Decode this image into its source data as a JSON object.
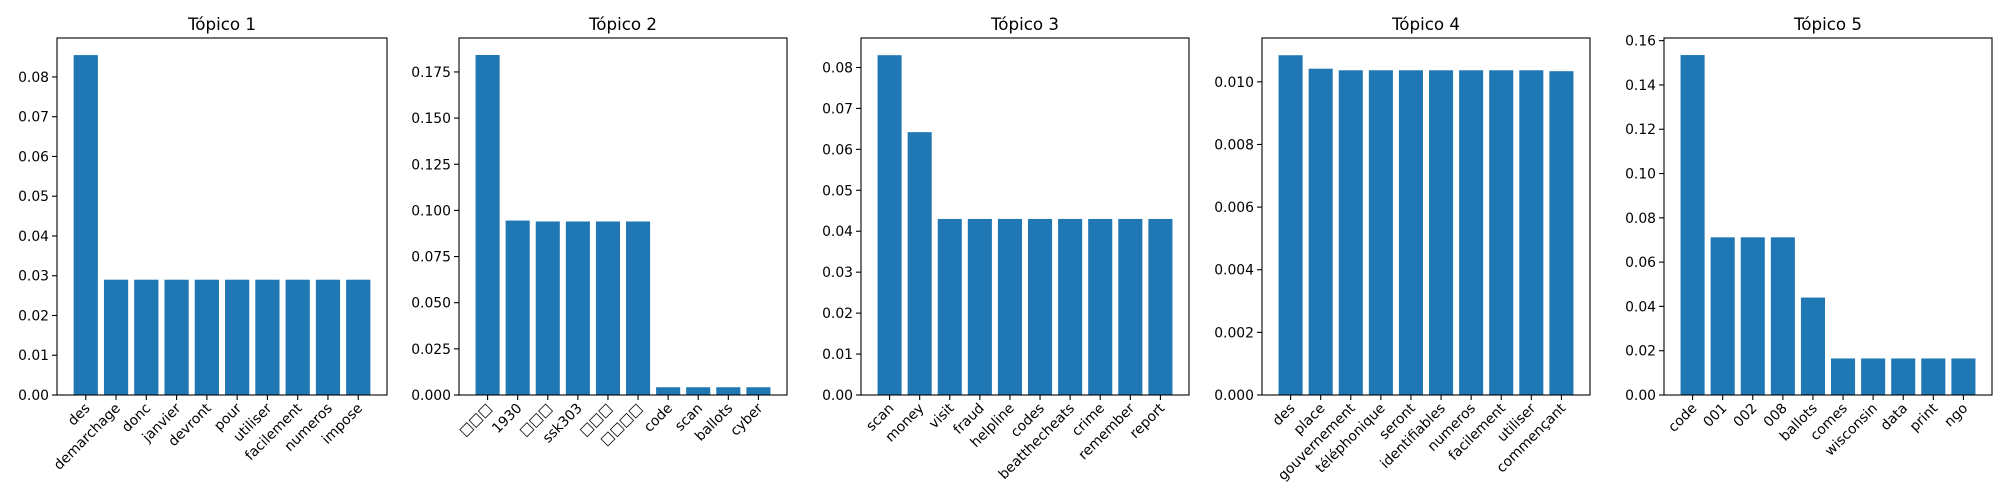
{
  "chart_data": [
    {
      "type": "bar",
      "title": "Tópico 1",
      "categories": [
        "des",
        "demarchage",
        "donc",
        "janvier",
        "devront",
        "pour",
        "utiliser",
        "facilement",
        "numeros",
        "impose"
      ],
      "values": [
        0.0855,
        0.029,
        0.029,
        0.029,
        0.029,
        0.029,
        0.029,
        0.029,
        0.029,
        0.029
      ],
      "ylim": [
        0,
        0.0898
      ],
      "yticks": [
        "0.00",
        "0.01",
        "0.02",
        "0.03",
        "0.04",
        "0.05",
        "0.06",
        "0.07",
        "0.08"
      ],
      "grid": false,
      "color": "#1f77b4"
    },
    {
      "type": "bar",
      "title": "Tópico 2",
      "categories": [
        "□□□",
        "1930",
        "□□□",
        "ssk303",
        "□□□",
        "□□□□",
        "code",
        "scan",
        "ballots",
        "cyber"
      ],
      "values": [
        0.1842,
        0.0945,
        0.094,
        0.094,
        0.094,
        0.094,
        0.0042,
        0.0042,
        0.0042,
        0.0042
      ],
      "ylim": [
        0,
        0.1934
      ],
      "yticks": [
        "0.000",
        "0.025",
        "0.050",
        "0.075",
        "0.100",
        "0.125",
        "0.150",
        "0.175"
      ],
      "grid": false,
      "color": "#1f77b4"
    },
    {
      "type": "bar",
      "title": "Tópico 3",
      "categories": [
        "scan",
        "money",
        "visit",
        "fraud",
        "helpline",
        "codes",
        "beatthecheats",
        "crime",
        "remember",
        "report"
      ],
      "values": [
        0.083,
        0.0642,
        0.043,
        0.043,
        0.043,
        0.043,
        0.043,
        0.043,
        0.043,
        0.043
      ],
      "ylim": [
        0,
        0.0872
      ],
      "yticks": [
        "0.00",
        "0.01",
        "0.02",
        "0.03",
        "0.04",
        "0.05",
        "0.06",
        "0.07",
        "0.08"
      ],
      "grid": false,
      "color": "#1f77b4"
    },
    {
      "type": "bar",
      "title": "Tópico 4",
      "categories": [
        "des",
        "place",
        "gouvernement",
        "téléphonique",
        "seront",
        "identifiables",
        "numeros",
        "facilement",
        "utiliser",
        "commençant"
      ],
      "values": [
        0.01085,
        0.01042,
        0.01037,
        0.01037,
        0.01037,
        0.01037,
        0.01037,
        0.01037,
        0.01037,
        0.01034
      ],
      "ylim": [
        0,
        0.0114
      ],
      "yticks": [
        "0.000",
        "0.002",
        "0.004",
        "0.006",
        "0.008",
        "0.010"
      ],
      "grid": false,
      "color": "#1f77b4"
    },
    {
      "type": "bar",
      "title": "Tópico 5",
      "categories": [
        "code",
        "001",
        "002",
        "008",
        "ballots",
        "comes",
        "wisconsin",
        "data",
        "print",
        "ngo"
      ],
      "values": [
        0.1535,
        0.0712,
        0.0712,
        0.0712,
        0.044,
        0.0165,
        0.0165,
        0.0165,
        0.0165,
        0.0165
      ],
      "ylim": [
        0,
        0.1612
      ],
      "yticks": [
        "0.00",
        "0.02",
        "0.04",
        "0.06",
        "0.08",
        "0.10",
        "0.12",
        "0.14",
        "0.16"
      ],
      "grid": false,
      "color": "#1f77b4"
    }
  ]
}
